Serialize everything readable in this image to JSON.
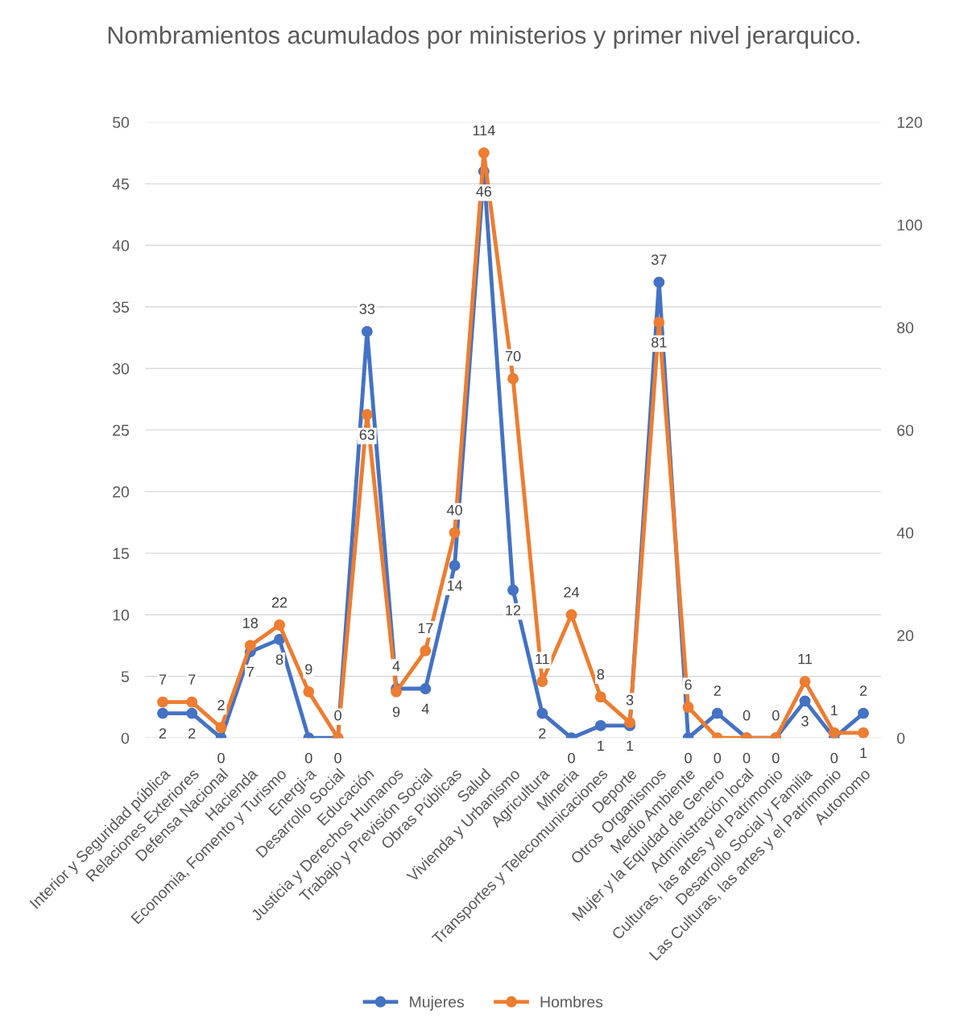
{
  "chart_data": {
    "type": "line",
    "title": "Nombramientos acumulados por ministerios y primer nivel jerarquico.",
    "categories": [
      "Interior y Seguridad pública",
      "Relaciones Exteriores",
      "Defensa Nacional",
      "Hacienda",
      "Economia, Fomento y Turismo",
      "Energi-a",
      "Desarrollo Social",
      "Educación",
      "Justicia y Derechos Humanos",
      "Trabajo y Previsión Social",
      "Obras Públicas",
      "Salud",
      "Vivienda y Urbanismo",
      "Agricultura",
      "Mineria",
      "Transportes y Telecomunicaciones",
      "Deporte",
      "Otros Organismos",
      "Medio Ambiente",
      "Mujer y la Equidad de Genero",
      "Administración local",
      "Culturas, las artes y el Patrimonio",
      "Desarrollo Social y Familia",
      "Las Culturas, las artes y el Patrimonio",
      "Autonomo"
    ],
    "series": [
      {
        "name": "Mujeres",
        "color": "#4472c4",
        "values": [
          2,
          2,
          0,
          7,
          8,
          0,
          0,
          33,
          4,
          4,
          14,
          46,
          12,
          2,
          0,
          1,
          1,
          37,
          0,
          2,
          0,
          0,
          3,
          0,
          2
        ]
      },
      {
        "name": "Hombres",
        "color": "#ed7d31",
        "axis": "y2",
        "values": [
          7,
          7,
          2,
          18,
          22,
          9,
          0,
          63,
          9,
          17,
          40,
          114,
          70,
          11,
          24,
          8,
          3,
          81,
          6,
          0,
          0,
          0,
          11,
          1,
          1
        ]
      }
    ],
    "ylim": [
      0,
      50
    ],
    "yticks": [
      0,
      5,
      10,
      15,
      20,
      25,
      30,
      35,
      40,
      45,
      50
    ],
    "y2lim": [
      0,
      120
    ],
    "y2ticks": [
      0,
      20,
      40,
      60,
      80,
      100,
      120
    ],
    "data_labels": true,
    "grid": "y",
    "legend": "bottom",
    "marker": "circle",
    "line_style": "solid"
  }
}
